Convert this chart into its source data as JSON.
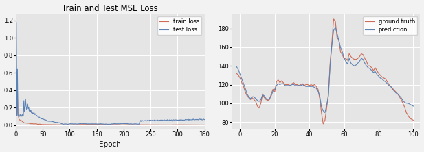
{
  "title_left": "Train and Test MSE Loss",
  "xlabel_left": "Epoch",
  "xlim_left": [
    0,
    350
  ],
  "yticks_left": [
    0.0,
    0.2,
    0.4,
    0.6,
    0.8,
    1.0,
    1.2
  ],
  "xticks_left": [
    0,
    50,
    100,
    150,
    200,
    250,
    300,
    350
  ],
  "legend_left": [
    "train loss",
    "test loss"
  ],
  "train_color": "#cd6b56",
  "test_color": "#5b82b5",
  "gt_color": "#cd6b56",
  "pred_color": "#5b82b5",
  "xlim_right": [
    -5,
    104
  ],
  "ylim_right": [
    73,
    196
  ],
  "yticks_right": [
    80,
    100,
    120,
    140,
    160,
    180
  ],
  "xticks_right": [
    0,
    20,
    40,
    60,
    80,
    100
  ],
  "legend_right": [
    "ground truth",
    "prediction"
  ],
  "bg_color": "#e5e5e5",
  "fig_bg": "#f2f2f2",
  "grid_color": "white"
}
